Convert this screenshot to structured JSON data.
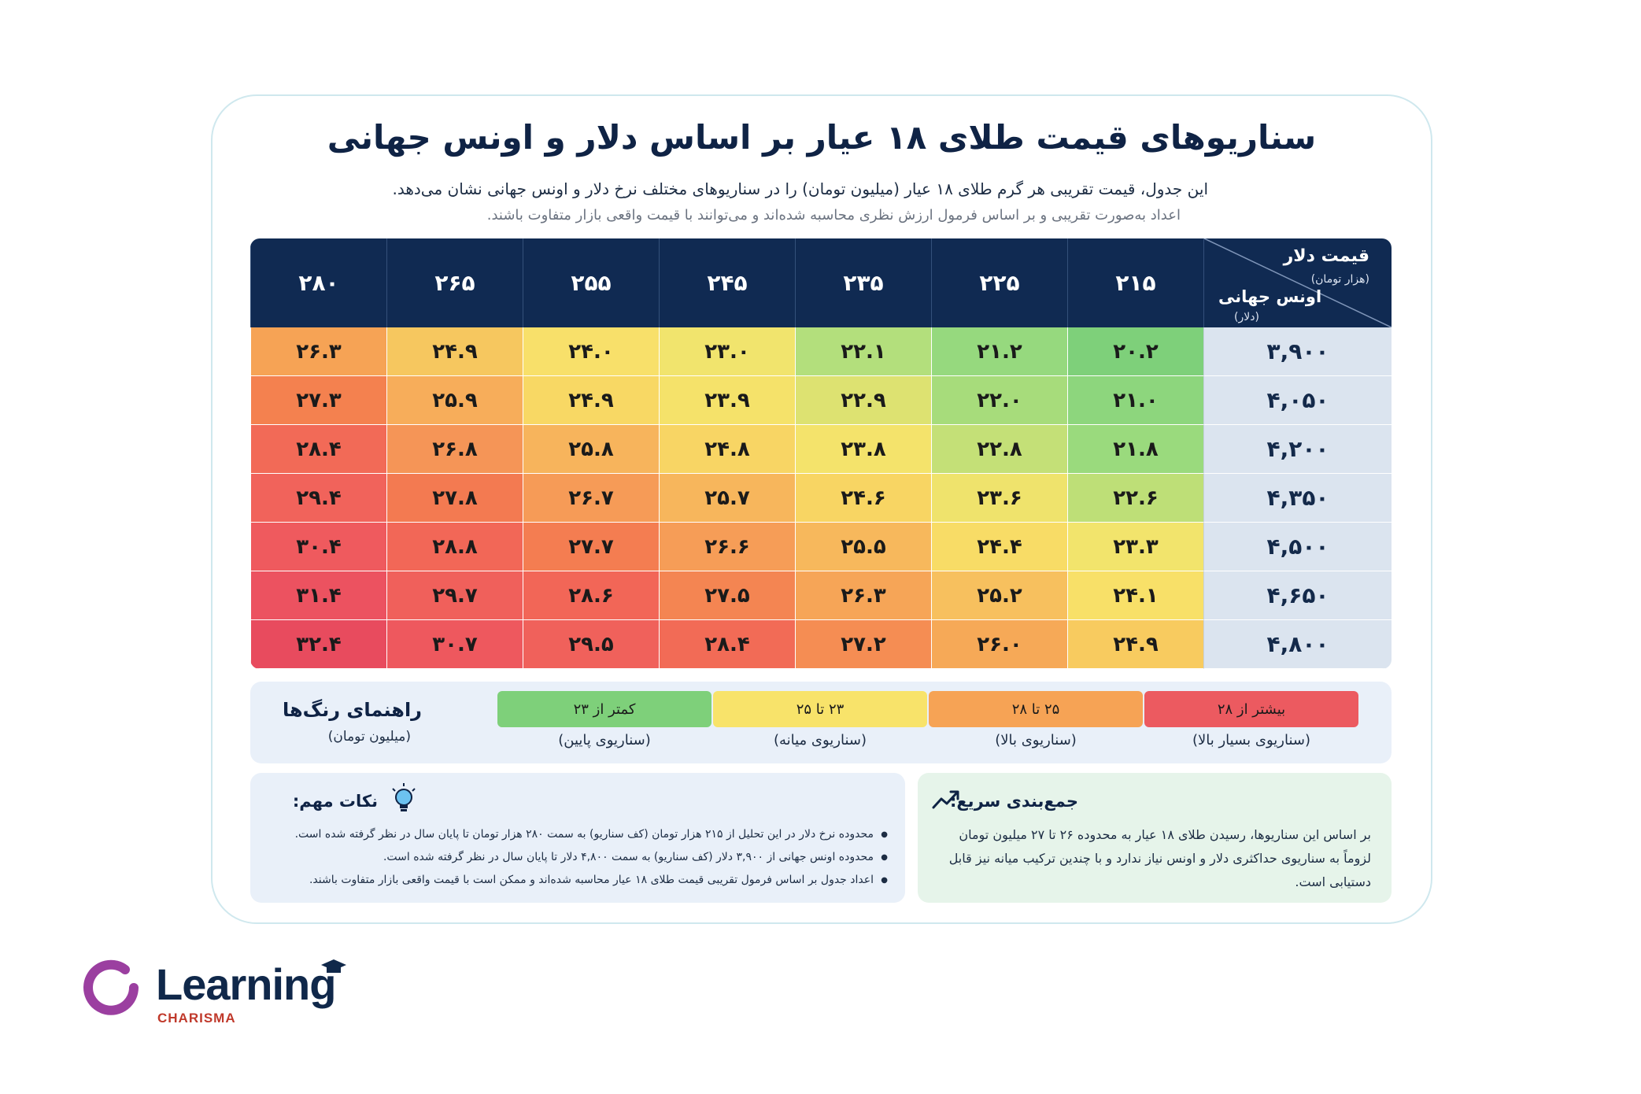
{
  "title": "سناریوهای قیمت طلای ۱۸ عیار بر اساس دلار و اونس جهانی",
  "subtitle": "این جدول، قیمت تقریبی هر گرم طلای ۱۸ عیار (میلیون تومان) را در سناریوهای مختلف نرخ دلار و اونس جهانی نشان می‌دهد.",
  "note": "اعداد به‌صورت تقریبی و بر اساس فرمول ارزش نظری محاسبه شده‌اند و می‌توانند با قیمت واقعی بازار متفاوت باشند.",
  "table": {
    "corner": {
      "dollar_label": "قیمت دلار",
      "dollar_unit": "(هزار تومان)",
      "ounce_label": "اونس جهانی",
      "ounce_unit": "(دلار)"
    },
    "columns": [
      "۲۱۵",
      "۲۲۵",
      "۲۳۵",
      "۲۴۵",
      "۲۵۵",
      "۲۶۵",
      "۲۸۰"
    ],
    "rows": [
      {
        "label": "۳,۹۰۰",
        "cells": [
          "۲۰.۲",
          "۲۱.۲",
          "۲۲.۱",
          "۲۳.۰",
          "۲۴.۰",
          "۲۴.۹",
          "۲۶.۳"
        ],
        "colors": [
          "#7ed07a",
          "#96d97e",
          "#b3df7c",
          "#f1e46d",
          "#f8e06a",
          "#f6c75f",
          "#f6a355"
        ]
      },
      {
        "label": "۴,۰۵۰",
        "cells": [
          "۲۱.۰",
          "۲۲.۰",
          "۲۲.۹",
          "۲۳.۹",
          "۲۴.۹",
          "۲۵.۹",
          "۲۷.۳"
        ],
        "colors": [
          "#8dd67d",
          "#a7dc7b",
          "#dde271",
          "#f5e26a",
          "#f8d864",
          "#f7ad5a",
          "#f4814f"
        ]
      },
      {
        "label": "۴,۲۰۰",
        "cells": [
          "۲۱.۸",
          "۲۲.۸",
          "۲۳.۸",
          "۲۴.۸",
          "۲۵.۸",
          "۲۶.۸",
          "۲۸.۴"
        ],
        "colors": [
          "#9ada7d",
          "#c4e077",
          "#f4e36b",
          "#f8d564",
          "#f7b45c",
          "#f59557",
          "#f26a57"
        ]
      },
      {
        "label": "۴,۳۵۰",
        "cells": [
          "۲۲.۶",
          "۲۳.۶",
          "۲۴.۶",
          "۲۵.۷",
          "۲۶.۷",
          "۲۷.۸",
          "۲۹.۴"
        ],
        "colors": [
          "#bedf77",
          "#efe36c",
          "#f8d563",
          "#f7b65c",
          "#f69b57",
          "#f37a51",
          "#f1635b"
        ]
      },
      {
        "label": "۴,۵۰۰",
        "cells": [
          "۲۳.۳",
          "۲۴.۴",
          "۲۵.۵",
          "۲۶.۶",
          "۲۷.۷",
          "۲۸.۸",
          "۳۰.۴"
        ],
        "colors": [
          "#f2e46c",
          "#f8dc66",
          "#f7b85c",
          "#f69d57",
          "#f47d51",
          "#f26757",
          "#ef5a5e"
        ]
      },
      {
        "label": "۴,۶۵۰",
        "cells": [
          "۲۴.۱",
          "۲۵.۲",
          "۲۶.۳",
          "۲۷.۵",
          "۲۸.۶",
          "۲۹.۷",
          "۳۱.۴"
        ],
        "colors": [
          "#f8e068",
          "#f7c05e",
          "#f6a557",
          "#f48552",
          "#f26657",
          "#f0605b",
          "#ec5260"
        ]
      },
      {
        "label": "۴,۸۰۰",
        "cells": [
          "۲۴.۹",
          "۲۶.۰",
          "۲۷.۲",
          "۲۸.۴",
          "۲۹.۵",
          "۳۰.۷",
          "۳۲.۴"
        ],
        "colors": [
          "#f8cb5f",
          "#f6a957",
          "#f58d53",
          "#f26b56",
          "#f0615b",
          "#ee585e",
          "#e84b5e"
        ]
      }
    ]
  },
  "legend": {
    "title": "راهنمای رنگ‌ها",
    "unit": "(میلیون تومان)",
    "items": [
      {
        "range": "کمتر از ۲۳",
        "caption": "(سناریوی پایین)",
        "color": "#7ed07a"
      },
      {
        "range": "۲۳ تا ۲۵",
        "caption": "(سناریوی میانه)",
        "color": "#f8e36a"
      },
      {
        "range": "۲۵ تا ۲۸",
        "caption": "(سناریوی بالا)",
        "color": "#f6a355"
      },
      {
        "range": "بیشتر از ۲۸",
        "caption": "(سناریوی بسیار بالا)",
        "color": "#ec5a60"
      }
    ]
  },
  "notes": {
    "title": "نکات مهم:",
    "icon": "lightbulb-icon",
    "items": [
      "محدوده نرخ دلار در این تحلیل از ۲۱۵ هزار تومان (کف سناریو) به سمت ۲۸۰ هزار تومان تا پایان سال در نظر گرفته شده است.",
      "محدوده اونس جهانی از ۳,۹۰۰ دلار (کف سناریو) به سمت ۴,۸۰۰ دلار تا پایان سال در نظر گرفته شده است.",
      "اعداد جدول بر اساس فرمول تقریبی قیمت طلای ۱۸ عیار محاسبه شده‌اند و ممکن است با قیمت واقعی بازار متفاوت باشند."
    ]
  },
  "summary": {
    "title": "جمع‌بندی سریع:",
    "icon": "trend-up-icon",
    "text": "بر اساس این سناریوها، رسیدن طلای ۱۸ عیار به محدوده ۲۶ تا ۲۷ میلیون تومان لزوماً به سناریوی حداکثری دلار و اونس نیاز ندارد و با چندین ترکیب میانه نیز قابل دستیابی است."
  },
  "brand": {
    "name": "Learning",
    "tagline": "CHARISMA",
    "ring_color": "#9b3fa0",
    "name_color": "#10284a",
    "tagline_color": "#c0392b"
  }
}
